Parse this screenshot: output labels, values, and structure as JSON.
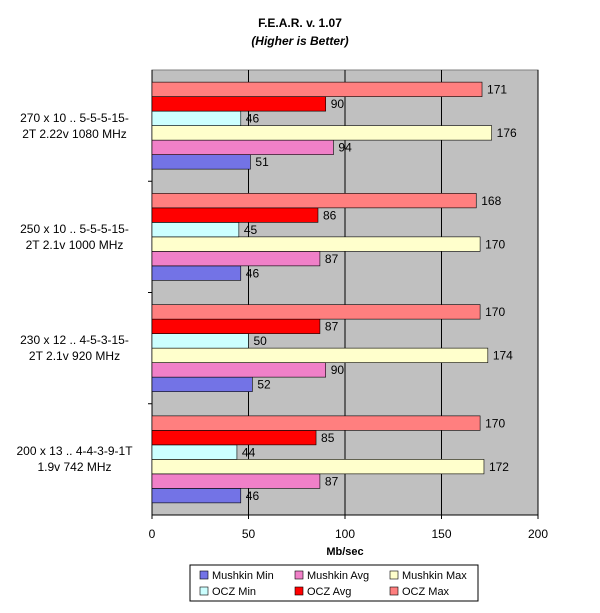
{
  "chart_data": {
    "type": "hbar",
    "title": "F.E.A.R.  v. 1.07",
    "subtitle": "(Higher is Better)",
    "x_label": "Mb/sec",
    "categories": [
      "270 x 10 .. 5-5-5-15-\n2T  2.22v  1080 MHz",
      "250 x 10 .. 5-5-5-15-\n2T  2.1v  1000 MHz",
      "230 x 12 .. 4-5-3-15-\n2T  2.1v  920 MHz",
      "200 x 13 .. 4-4-3-9-1T\n1.9v  742 MHz"
    ],
    "series": [
      {
        "name": "Mushkin Min",
        "color": "#7373e6",
        "values": [
          51,
          46,
          52,
          46
        ]
      },
      {
        "name": "Mushkin Avg",
        "color": "#f080c8",
        "values": [
          94,
          87,
          90,
          87
        ]
      },
      {
        "name": "Mushkin Max",
        "color": "#ffffcc",
        "values": [
          176,
          170,
          174,
          172
        ]
      },
      {
        "name": "OCZ Min",
        "color": "#ccffff",
        "values": [
          46,
          45,
          50,
          44
        ]
      },
      {
        "name": "OCZ Avg",
        "color": "#ff0000",
        "values": [
          90,
          86,
          87,
          85
        ]
      },
      {
        "name": "OCZ Max",
        "color": "#ff7f7f",
        "values": [
          171,
          168,
          170,
          170
        ]
      }
    ],
    "xlim": [
      0,
      200
    ],
    "xticks": [
      0,
      50,
      100,
      150,
      200
    ],
    "grid": true
  }
}
